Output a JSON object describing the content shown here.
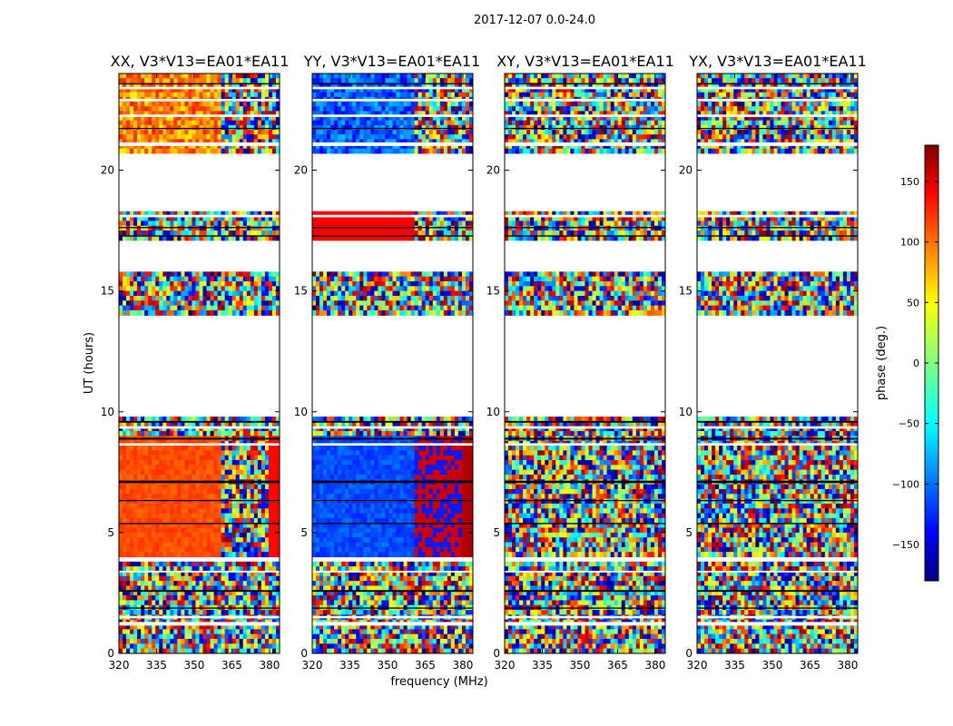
{
  "suptitle": "2017-12-07 0.0-24.0",
  "chart_data": {
    "type": "heatmap",
    "xlabel": "frequency (MHz)",
    "ylabel": "UT (hours)",
    "xlim": [
      320,
      384
    ],
    "ylim": [
      0,
      24
    ],
    "xticks": [
      320,
      335,
      350,
      365,
      380
    ],
    "yticks": [
      0,
      5,
      10,
      15,
      20
    ],
    "colorbar": {
      "label": "phase (deg.)",
      "range": [
        -180,
        180
      ],
      "ticks": [
        150,
        100,
        50,
        0,
        -50,
        -100,
        -150
      ],
      "tick_labels": [
        "150",
        "100",
        "50",
        "0",
        "−50",
        "−100",
        "−150"
      ],
      "colormap": "jet",
      "colors": [
        "#00007f",
        "#0000ff",
        "#007fff",
        "#00ffff",
        "#7fff7f",
        "#ffff00",
        "#ff7f00",
        "#ff0000",
        "#7f0000"
      ]
    },
    "panels": [
      {
        "title": "XX, V3*V13=EA01*EA11",
        "pattern": "xx"
      },
      {
        "title": "YY, V3*V13=EA01*EA11",
        "pattern": "yy"
      },
      {
        "title": "XY, V3*V13=EA01*EA11",
        "pattern": "noise"
      },
      {
        "title": "YX, V3*V13=EA01*EA11",
        "pattern": "noise"
      }
    ],
    "data_time_ranges_hours": [
      [
        0.0,
        3.8
      ],
      [
        4.0,
        9.8
      ],
      [
        14.0,
        15.8
      ],
      [
        17.1,
        18.3
      ],
      [
        20.7,
        24.0
      ]
    ],
    "blank_time_ranges_hours": [
      [
        1.15,
        1.3
      ],
      [
        1.45,
        1.55
      ],
      [
        3.35,
        3.42
      ],
      [
        8.6,
        8.7
      ],
      [
        9.3,
        9.4
      ],
      [
        21.0,
        21.15
      ],
      [
        22.2,
        22.3
      ],
      [
        22.85,
        22.95
      ],
      [
        23.35,
        23.45
      ],
      [
        18.05,
        18.15
      ]
    ],
    "flagged_row_ranges_hours": [
      [
        1.85,
        1.9
      ],
      [
        2.55,
        2.62
      ],
      [
        5.35,
        5.4
      ],
      [
        6.3,
        6.35
      ],
      [
        7.05,
        7.15
      ],
      [
        8.85,
        8.92
      ],
      [
        9.55,
        9.62
      ],
      [
        17.25,
        17.3
      ],
      [
        17.6,
        17.65
      ],
      [
        21.7,
        21.75
      ],
      [
        23.55,
        23.6
      ]
    ]
  }
}
